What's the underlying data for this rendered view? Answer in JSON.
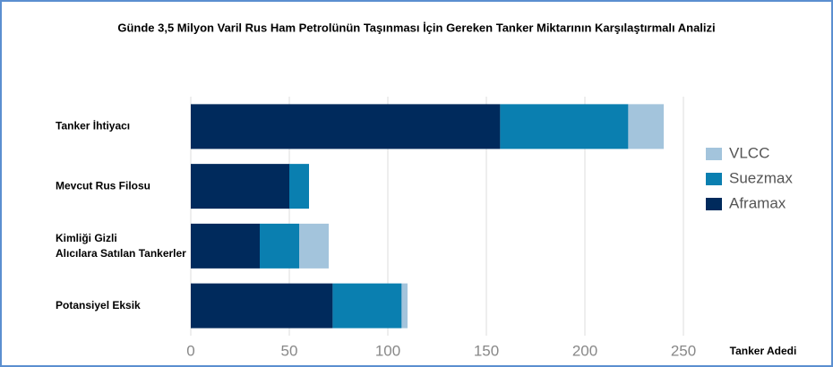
{
  "chart_data": {
    "type": "bar",
    "orientation": "horizontal",
    "stacked": true,
    "title": "Günde 3,5 Milyon Varil Rus Ham Petrolünün Taşınması İçin Gereken Tanker Miktarının Karşılaştırmalı Analizi",
    "xlabel": "Tanker Adedi",
    "categories": [
      "Tanker İhtiyacı",
      "Mevcut Rus Filosu",
      "Kimliği Gizli Alıcılara Satılan Tankerler",
      "Potansiyel Eksik"
    ],
    "series": [
      {
        "name": "Aframax",
        "color": "#002a5c",
        "values": [
          157,
          50,
          35,
          72
        ]
      },
      {
        "name": "Suezmax",
        "color": "#0a7fb0",
        "values": [
          65,
          10,
          20,
          35
        ]
      },
      {
        "name": "VLCC",
        "color": "#a3c4dc",
        "values": [
          18,
          0,
          15,
          3
        ]
      }
    ],
    "xlim": [
      0,
      250
    ],
    "xticks": [
      0,
      50,
      100,
      150,
      200,
      250
    ],
    "grid": true,
    "legend": "right"
  }
}
